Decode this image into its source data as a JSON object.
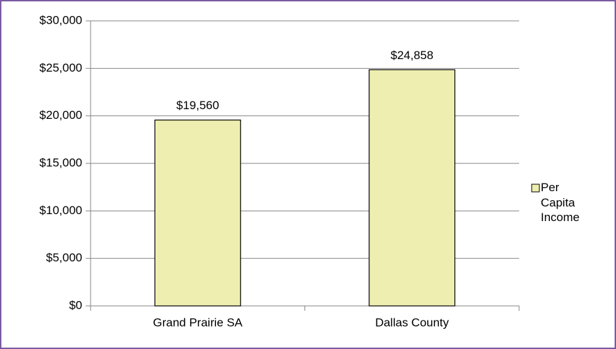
{
  "chart_data": {
    "type": "bar",
    "categories": [
      "Grand Prairie SA",
      "Dallas County"
    ],
    "series": [
      {
        "name": "Per Capita Income",
        "color": "#eeeeb0",
        "values": [
          19560,
          24858
        ],
        "value_labels": [
          "$19,560",
          "$24,858"
        ]
      }
    ],
    "ylim": [
      0,
      30000
    ],
    "yticks": [
      {
        "value": 0,
        "label": "$0"
      },
      {
        "value": 5000,
        "label": "$5,000"
      },
      {
        "value": 10000,
        "label": "$10,000"
      },
      {
        "value": 15000,
        "label": "$15,000"
      },
      {
        "value": 20000,
        "label": "$20,000"
      },
      {
        "value": 25000,
        "label": "$25,000"
      },
      {
        "value": 30000,
        "label": "$30,000"
      }
    ],
    "grid": true,
    "legend": "right"
  }
}
